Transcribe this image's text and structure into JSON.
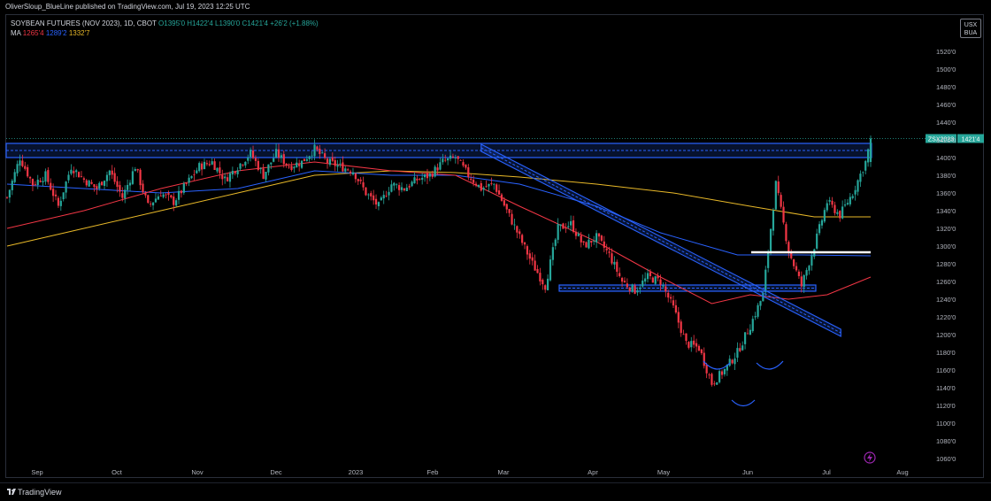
{
  "header": {
    "publisher_line": "OliverSloup_BlueLine published on TradingView.com, Jul 19, 2023 12:25 UTC"
  },
  "legend": {
    "symbol": "SOYBEAN FUTURES (NOV 2023), 1D, CBOT",
    "ohlc": "O1395'0 H1422'4 L1390'0 C1421'4 +26'2 (+1.88%)",
    "ma_label": "MA",
    "ma1": "1265'4",
    "ma2": "1289'2",
    "ma3": "1332'7"
  },
  "currency_box": {
    "line1": "USX",
    "line2": "BUA"
  },
  "price_tag": {
    "symbol": "ZSX2023",
    "price": "1421'4"
  },
  "footer": {
    "brand": "TradingView"
  },
  "colors": {
    "up": "#26a69a",
    "down": "#f23645",
    "ma_fast": "#f23645",
    "ma_mid": "#2962ff",
    "ma_slow": "#e8b828",
    "zone": "#2962ff"
  },
  "chart_data": {
    "type": "candlestick",
    "ylim": [
      1055,
      1530
    ],
    "y_ticks": [
      "1520'0",
      "1500'0",
      "1480'0",
      "1460'0",
      "1440'0",
      "1420'0",
      "1400'0",
      "1380'0",
      "1360'0",
      "1340'0",
      "1320'0",
      "1300'0",
      "1280'0",
      "1260'0",
      "1240'0",
      "1220'0",
      "1200'0",
      "1180'0",
      "1160'0",
      "1140'0",
      "1120'0",
      "1100'0",
      "1080'0",
      "1060'0"
    ],
    "x_ticks": [
      "Sep",
      "Oct",
      "Nov",
      "Dec",
      "2023",
      "Feb",
      "Mar",
      "Apr",
      "May",
      "Jun",
      "Jul",
      "Aug"
    ],
    "price_path": [
      [
        0,
        1355
      ],
      [
        5,
        1400
      ],
      [
        10,
        1370
      ],
      [
        15,
        1380
      ],
      [
        20,
        1345
      ],
      [
        25,
        1390
      ],
      [
        30,
        1375
      ],
      [
        35,
        1365
      ],
      [
        40,
        1385
      ],
      [
        45,
        1355
      ],
      [
        50,
        1390
      ],
      [
        55,
        1345
      ],
      [
        60,
        1360
      ],
      [
        65,
        1350
      ],
      [
        70,
        1370
      ],
      [
        75,
        1390
      ],
      [
        80,
        1395
      ],
      [
        85,
        1375
      ],
      [
        90,
        1390
      ],
      [
        95,
        1405
      ],
      [
        100,
        1380
      ],
      [
        105,
        1405
      ],
      [
        110,
        1390
      ],
      [
        115,
        1395
      ],
      [
        120,
        1410
      ],
      [
        125,
        1395
      ],
      [
        130,
        1390
      ],
      [
        135,
        1385
      ],
      [
        140,
        1360
      ],
      [
        145,
        1345
      ],
      [
        150,
        1370
      ],
      [
        155,
        1365
      ],
      [
        160,
        1375
      ],
      [
        165,
        1380
      ],
      [
        170,
        1395
      ],
      [
        175,
        1400
      ],
      [
        180,
        1380
      ],
      [
        185,
        1365
      ],
      [
        190,
        1370
      ],
      [
        195,
        1340
      ],
      [
        200,
        1310
      ],
      [
        205,
        1280
      ],
      [
        210,
        1255
      ],
      [
        215,
        1320
      ],
      [
        220,
        1325
      ],
      [
        225,
        1300
      ],
      [
        230,
        1310
      ],
      [
        235,
        1290
      ],
      [
        240,
        1260
      ],
      [
        245,
        1250
      ],
      [
        250,
        1265
      ],
      [
        255,
        1260
      ],
      [
        260,
        1230
      ],
      [
        265,
        1190
      ],
      [
        270,
        1185
      ],
      [
        275,
        1145
      ],
      [
        280,
        1160
      ],
      [
        285,
        1180
      ],
      [
        290,
        1210
      ],
      [
        295,
        1245
      ],
      [
        300,
        1370
      ],
      [
        305,
        1295
      ],
      [
        310,
        1255
      ],
      [
        315,
        1300
      ],
      [
        320,
        1350
      ],
      [
        325,
        1335
      ],
      [
        330,
        1360
      ],
      [
        335,
        1395
      ],
      [
        337,
        1421
      ]
    ],
    "ma_fast": [
      [
        0,
        1320
      ],
      [
        30,
        1340
      ],
      [
        60,
        1365
      ],
      [
        90,
        1385
      ],
      [
        120,
        1395
      ],
      [
        150,
        1385
      ],
      [
        175,
        1380
      ],
      [
        200,
        1345
      ],
      [
        230,
        1305
      ],
      [
        255,
        1265
      ],
      [
        275,
        1235
      ],
      [
        290,
        1245
      ],
      [
        305,
        1240
      ],
      [
        320,
        1245
      ],
      [
        337,
        1265
      ]
    ],
    "ma_mid": [
      [
        0,
        1370
      ],
      [
        30,
        1365
      ],
      [
        60,
        1360
      ],
      [
        90,
        1365
      ],
      [
        120,
        1385
      ],
      [
        150,
        1380
      ],
      [
        175,
        1380
      ],
      [
        200,
        1370
      ],
      [
        230,
        1345
      ],
      [
        255,
        1315
      ],
      [
        285,
        1290
      ],
      [
        310,
        1290
      ],
      [
        337,
        1289
      ]
    ],
    "ma_slow": [
      [
        0,
        1300
      ],
      [
        30,
        1320
      ],
      [
        60,
        1340
      ],
      [
        90,
        1360
      ],
      [
        120,
        1380
      ],
      [
        150,
        1385
      ],
      [
        175,
        1383
      ],
      [
        200,
        1378
      ],
      [
        230,
        1370
      ],
      [
        260,
        1360
      ],
      [
        290,
        1345
      ],
      [
        315,
        1333
      ],
      [
        337,
        1333
      ]
    ],
    "annotations": {
      "resistance_zone": [
        1400,
        1416
      ],
      "support_zone": [
        1249,
        1256
      ],
      "white_level": 1293,
      "down_trendline": [
        [
          185,
          1413
        ],
        [
          315,
          1200
        ]
      ]
    }
  }
}
